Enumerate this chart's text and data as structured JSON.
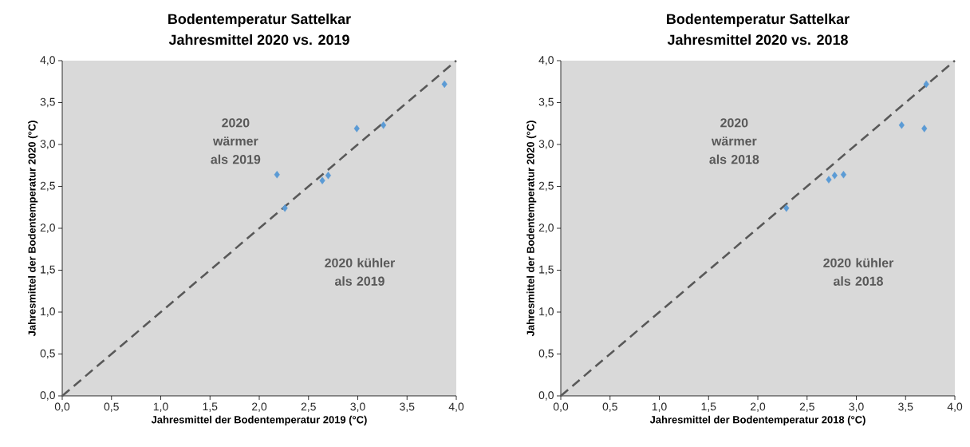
{
  "chart_data": [
    {
      "type": "scatter",
      "title": "Bodentemperatur Sattelkar",
      "subtitle": "Jahresmittel 2020 vs. 2019",
      "xlabel": "Jahresmittel der Bodentemperatur 2019 (°C)",
      "ylabel": "Jahresmittel der Bodentemperatur 2020 (°C)",
      "xlim": [
        0,
        4
      ],
      "ylim": [
        0,
        4
      ],
      "xticks": [
        {
          "value": 0,
          "label": "0,0"
        },
        {
          "value": 0.5,
          "label": "0,5"
        },
        {
          "value": 1,
          "label": "1,0"
        },
        {
          "value": 1.5,
          "label": "1,5"
        },
        {
          "value": 2,
          "label": "2,0"
        },
        {
          "value": 2.5,
          "label": "2,5"
        },
        {
          "value": 3,
          "label": "3,0"
        },
        {
          "value": 3.5,
          "label": "3,5"
        },
        {
          "value": 4,
          "label": "4,0"
        }
      ],
      "yticks": [
        {
          "value": 0,
          "label": "0,0"
        },
        {
          "value": 0.5,
          "label": "0,5"
        },
        {
          "value": 1,
          "label": "1,0"
        },
        {
          "value": 1.5,
          "label": "1,5"
        },
        {
          "value": 2,
          "label": "2,0"
        },
        {
          "value": 2.5,
          "label": "2,5"
        },
        {
          "value": 3,
          "label": "3,0"
        },
        {
          "value": 3.5,
          "label": "3,5"
        },
        {
          "value": 4,
          "label": "4,0"
        }
      ],
      "annotations": [
        "2020 wärmer als 2019",
        "2020 kühler als 2019"
      ],
      "series": [
        {
          "type": "scatter",
          "color": "#5b9bd5",
          "marker": "diamond",
          "x": [
            2.18,
            2.26,
            2.64,
            2.7,
            2.99,
            3.26,
            3.88
          ],
          "values": [
            2.64,
            2.24,
            2.57,
            2.63,
            3.19,
            3.23,
            3.72
          ]
        },
        {
          "type": "line",
          "color": "#595959",
          "line_style": "dashed",
          "x": [
            0,
            4
          ],
          "values": [
            0,
            4
          ]
        }
      ]
    },
    {
      "type": "scatter",
      "title": "Bodentemperatur Sattelkar",
      "subtitle": "Jahresmittel 2020 vs. 2018",
      "xlabel": "Jahresmittel der Bodentemperatur 2018 (°C)",
      "ylabel": "Jahresmittel der Bodentemperatur 2020 (°C)",
      "xlim": [
        0,
        4
      ],
      "ylim": [
        0,
        4
      ],
      "xticks": [
        {
          "value": 0,
          "label": "0,0"
        },
        {
          "value": 0.5,
          "label": "0,5"
        },
        {
          "value": 1,
          "label": "1,0"
        },
        {
          "value": 1.5,
          "label": "1,5"
        },
        {
          "value": 2,
          "label": "2,0"
        },
        {
          "value": 2.5,
          "label": "2,5"
        },
        {
          "value": 3,
          "label": "3,0"
        },
        {
          "value": 3.5,
          "label": "3,5"
        },
        {
          "value": 4,
          "label": "4,0"
        }
      ],
      "yticks": [
        {
          "value": 0,
          "label": "0,0"
        },
        {
          "value": 0.5,
          "label": "0,5"
        },
        {
          "value": 1,
          "label": "1,0"
        },
        {
          "value": 1.5,
          "label": "1,5"
        },
        {
          "value": 2,
          "label": "2,0"
        },
        {
          "value": 2.5,
          "label": "2,5"
        },
        {
          "value": 3,
          "label": "3,0"
        },
        {
          "value": 3.5,
          "label": "3,5"
        },
        {
          "value": 4,
          "label": "4,0"
        }
      ],
      "annotations": [
        "2020 wärmer als 2018",
        "2020 kühler als 2018"
      ],
      "series": [
        {
          "type": "scatter",
          "color": "#5b9bd5",
          "marker": "diamond",
          "x": [
            2.29,
            2.72,
            2.78,
            2.87,
            3.46,
            3.69,
            3.71
          ],
          "values": [
            2.24,
            2.58,
            2.63,
            2.64,
            3.23,
            3.19,
            3.72
          ]
        },
        {
          "type": "line",
          "color": "#595959",
          "line_style": "dashed",
          "x": [
            0,
            4
          ],
          "values": [
            0,
            4
          ]
        }
      ]
    }
  ]
}
